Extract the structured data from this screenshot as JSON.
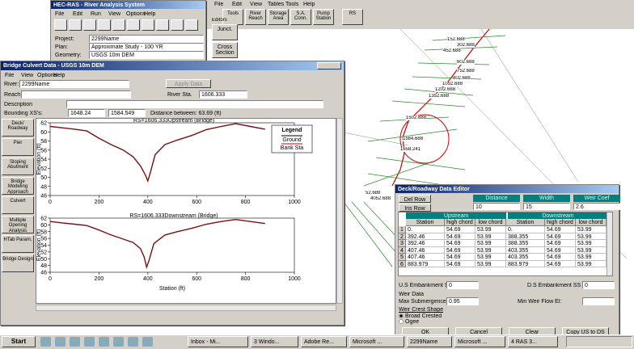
{
  "main_window": {
    "title": "HEC-RAS - River Analysis System",
    "menu": [
      "File",
      "Edit",
      "Run",
      "View",
      "Options",
      "Help"
    ],
    "fields": [
      {
        "label": "Project:",
        "value": "2299Name"
      },
      {
        "label": "Plan:",
        "value": "Approximate Study - 100 YR"
      },
      {
        "label": "Geometry:",
        "value": "USGS 10m DEM"
      }
    ]
  },
  "geometry_window": {
    "menu": [
      "File",
      "Edit",
      "View",
      "Tables",
      "Tools",
      "Help"
    ],
    "tools": [
      "Tools",
      "River Reach",
      "Storage Area",
      "S.A. Conn.",
      "Pump Station",
      "RS"
    ],
    "editors": "Editors",
    "junct": "Junct.",
    "cross_section": "Cross Section"
  },
  "map": {
    "labels": [
      "152.688",
      "302.688",
      "452.688",
      "602.688",
      "752.688",
      "802.688",
      "1052.688",
      "1202.688",
      "1352.688",
      "1502.688",
      "1584.688",
      "1658.241",
      "52.688",
      "4052.688"
    ]
  },
  "bridge_window": {
    "title": "Bridge Culvert Data - USGS 10m DEM",
    "menu": [
      "File",
      "View",
      "Options",
      "Help"
    ],
    "river_label": "River:",
    "river": "2299Name",
    "apply": "Apply Data",
    "reach_label": "Reach:",
    "river_sta_label": "River Sta.",
    "river_sta": "1606.333",
    "description_label": "Description",
    "bounding_label": "Bounding XS's:",
    "bounding": [
      "1648.24",
      "1584.549"
    ],
    "distance": "Distance between: 63.69 (ft)",
    "buttons": [
      "Deck/ Roadway",
      "Pier",
      "Sloping Abutment",
      "Bridge Modeling Approach",
      "Culvert",
      "Multiple Opening Analysis",
      "HTab Param.",
      "Bridge Design"
    ],
    "legend": {
      "title": "Legend",
      "items": [
        "Ground",
        "Bank Sta"
      ]
    },
    "y_label": "Elevation (ft)",
    "x_label": "Station (ft)",
    "plots": [
      {
        "title": "RS=1606.333Upstream (Bridge)",
        "xlim": [
          0,
          1000
        ],
        "ylim": [
          46,
          62
        ],
        "xticks": [
          0,
          200,
          400,
          600,
          800,
          1000
        ],
        "yticks": [
          46,
          48,
          50,
          52,
          54,
          56,
          58,
          60,
          62
        ],
        "stations": [
          0,
          50,
          100,
          150,
          200,
          250,
          300,
          340,
          370,
          390,
          400,
          410,
          430,
          470,
          520,
          580,
          640,
          700,
          760,
          820,
          880
        ],
        "elevations": [
          61.2,
          60.9,
          60.6,
          60.2,
          58.6,
          57.2,
          56,
          54.5,
          52.5,
          50.5,
          49.2,
          51,
          55,
          57.2,
          58.2,
          59.2,
          60.5,
          61.2,
          61.8,
          61.2,
          60.6
        ]
      },
      {
        "title": "RS=1606.333Downstream (Bridge)",
        "xlim": [
          0,
          1000
        ],
        "ylim": [
          46,
          62
        ],
        "xticks": [
          0,
          200,
          400,
          600,
          800,
          1000
        ],
        "yticks": [
          46,
          48,
          50,
          52,
          54,
          56,
          58,
          60,
          62
        ],
        "stations": [
          0,
          50,
          100,
          150,
          200,
          250,
          300,
          340,
          370,
          385,
          395,
          405,
          425,
          470,
          520,
          580,
          640,
          700,
          760,
          820,
          880
        ],
        "elevations": [
          61,
          60.6,
          60.2,
          59.8,
          58.5,
          57,
          55.8,
          54.8,
          53,
          50.5,
          47.5,
          49.5,
          54.5,
          57,
          58,
          59,
          60.2,
          61,
          61.6,
          61,
          60.4
        ]
      }
    ]
  },
  "deck_editor": {
    "title": "Deck/Roadway Data Editor",
    "del_row": "Del Row",
    "ins_row": "Ins Row",
    "params": [
      {
        "label": "Distance",
        "value": "10"
      },
      {
        "label": "Width",
        "value": "15"
      },
      {
        "label": "Weir Coef",
        "value": "2.6"
      }
    ],
    "groups": [
      "Upstream",
      "Downstream"
    ],
    "columns": [
      "Station",
      "high chord",
      "low chord",
      "Station",
      "high chord",
      "low chord"
    ],
    "rows": [
      [
        "1",
        "0.",
        "54.69",
        "53.99",
        "0.",
        "54.69",
        "53.99"
      ],
      [
        "2",
        "392.46",
        "54.69",
        "53.99",
        "388.355",
        "54.69",
        "53.99"
      ],
      [
        "3",
        "392.46",
        "54.69",
        "53.99",
        "388.355",
        "54.69",
        "53.99"
      ],
      [
        "4",
        "407.46",
        "54.69",
        "53.99",
        "403.355",
        "54.69",
        "53.99"
      ],
      [
        "5",
        "407.46",
        "54.69",
        "53.99",
        "403.355",
        "54.69",
        "53.99"
      ],
      [
        "6",
        "883.979",
        "54.69",
        "53.99",
        "883.979",
        "54.69",
        "53.99"
      ]
    ],
    "us_label": "U.S Embankment SS",
    "us_value": "0",
    "ds_label": "D.S Embankment SS",
    "ds_value": "0",
    "weir_data": "Weir Data",
    "max_sub_label": "Max Submergence:",
    "max_sub": "0.95",
    "min_weir_label": "Min Weir Flow El:",
    "crest_label": "Weir Crest Shape",
    "crest_options": [
      "Broad Crested",
      "Ogee"
    ],
    "buttons": [
      "OK",
      "Cancel",
      "Clear",
      "Copy US to DS"
    ]
  },
  "taskbar": {
    "start": "Start",
    "items": [
      "Inbox - Mi...",
      "3 Windo...",
      "Adobe Re...",
      "Microsoft ...",
      "2299Name",
      "Microsoft ...",
      "4 RAS 3..."
    ]
  }
}
